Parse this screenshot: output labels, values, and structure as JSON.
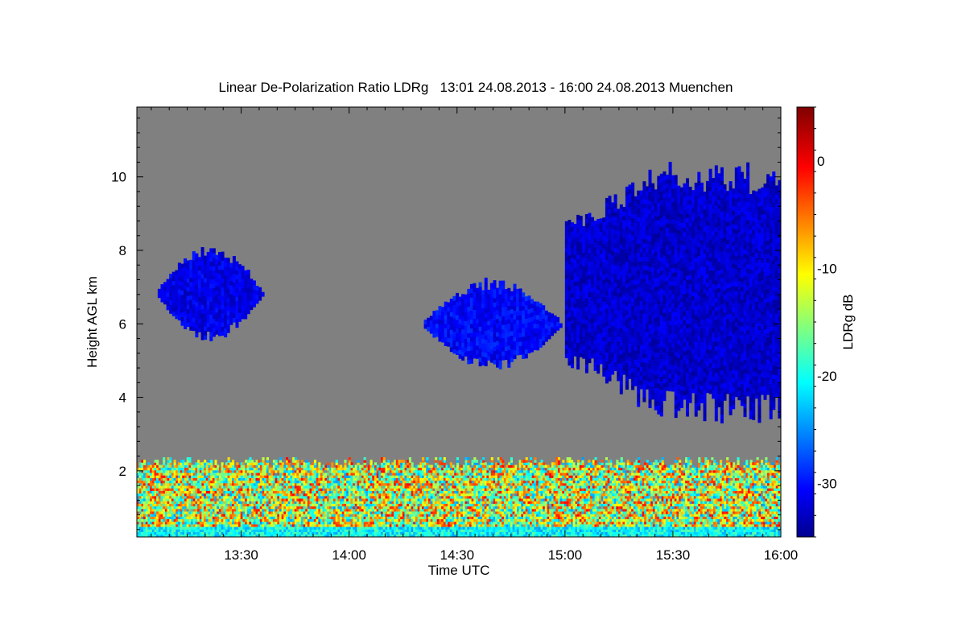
{
  "chart_data": {
    "type": "heatmap",
    "title": "Linear De-Polarization Ratio LDRg   13:01 24.08.2013 - 16:00 24.08.2013 Muenchen",
    "xlabel": "Time UTC",
    "ylabel": "Height AGL km",
    "colorbar_label": "LDRg dB",
    "x_range": [
      "13:01",
      "16:00"
    ],
    "x_tick_labels": [
      "13:30",
      "14:00",
      "14:30",
      "15:00",
      "15:30",
      "16:00"
    ],
    "y_range": [
      0.2,
      11.9
    ],
    "y_tick_labels": [
      "2",
      "4",
      "6",
      "8",
      "10"
    ],
    "colorbar_range": [
      -35,
      5
    ],
    "colorbar_tick_labels": [
      "0",
      "-10",
      "-20",
      "-30"
    ],
    "colormap": "jet",
    "background_color": "#808080",
    "features": [
      {
        "name": "cloud",
        "x_range": [
          "13:06",
          "13:36"
        ],
        "height_km": [
          5.5,
          8.1
        ],
        "ldr_db": -31
      },
      {
        "name": "cloud",
        "x_range": [
          "14:20",
          "14:59"
        ],
        "height_km": [
          4.7,
          7.2
        ],
        "ldr_db": -30
      },
      {
        "name": "cloud",
        "x_range": [
          "15:00",
          "16:00"
        ],
        "height_km": [
          3.3,
          10.4
        ],
        "ldr_db": -32
      },
      {
        "name": "boundary layer aerosol",
        "x_range": [
          "13:01",
          "16:00"
        ],
        "height_km": [
          0.2,
          2.3
        ],
        "ldr_db": -12
      }
    ]
  }
}
